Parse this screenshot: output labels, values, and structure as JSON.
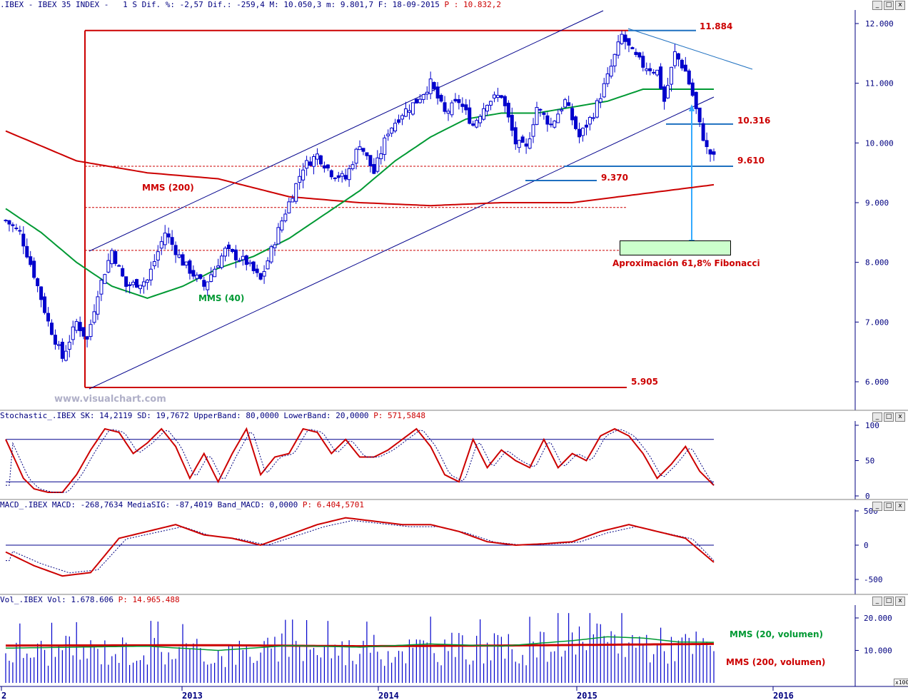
{
  "headers": {
    "price": ".IBEX - IBEX 35 INDEX -   1 S Dif. %: -2,57 Dif.: -259,4 M: 10.050,3 m: 9.801,7 F: 18-09-2015 ",
    "price_p": "P : 10.832,2",
    "stoch": "Stochastic_.IBEX SK: 14,2119 SD: 19,7672 UpperBand: 80,0000 LowerBand: 20,0000 ",
    "stoch_p": "P: 571,5848",
    "macd": "MACD_.IBEX MACD: -268,7634 MediaSIG: -87,4019 Band_MACD: 0,0000 ",
    "macd_p": "P: 6.404,5701",
    "vol": "Vol_.IBEX Vol: 1.678.606 ",
    "vol_p": "P: 14.965.488"
  },
  "window_buttons": [
    "_",
    "□",
    "x"
  ],
  "watermark": "www.visualchart.com",
  "annotations": {
    "high": "11.884",
    "low": "5.905",
    "resistance": "10.316",
    "support1": "9.610",
    "support2": "9.370",
    "mms200": "MMS (200)",
    "mms40": "MMS (40)",
    "fibonacci": "Aproximación 61,8% Fibonacci",
    "vol_mms20": "MMS (20, volumen)",
    "vol_mms200": "MMS (200, volumen)"
  },
  "colors": {
    "bg": "#ffffff",
    "candle": "#0000cc",
    "mms200": "#cc0000",
    "mms40": "#009933",
    "channel": "#00008b",
    "level": "#1e70c0",
    "text_red": "#cc0000",
    "fib_box": "#ccffcc",
    "fib_arrow": "#33aaff"
  },
  "chart_data": [
    {
      "type": "candlestick",
      "name": "IBEX 35 weekly",
      "y_axis": {
        "ticks": [
          6000,
          7000,
          8000,
          9000,
          10000,
          11000,
          12000
        ],
        "tick_labels": [
          "6.000",
          "7.000",
          "8.000",
          "9.000",
          "10.000",
          "11.000",
          "12.000"
        ],
        "ylim": [
          5650,
          12300
        ]
      },
      "x_axis": {
        "tick_labels": [
          "2",
          "2013",
          "2014",
          "2015",
          "2016"
        ]
      },
      "anchors_close": [
        [
          0,
          8700
        ],
        [
          4,
          8500
        ],
        [
          8,
          7800
        ],
        [
          12,
          7000
        ],
        [
          16,
          6400
        ],
        [
          20,
          7000
        ],
        [
          23,
          6700
        ],
        [
          26,
          7500
        ],
        [
          30,
          8200
        ],
        [
          34,
          7600
        ],
        [
          40,
          7700
        ],
        [
          45,
          8500
        ],
        [
          50,
          8000
        ],
        [
          56,
          7600
        ],
        [
          62,
          8200
        ],
        [
          68,
          8000
        ],
        [
          72,
          7700
        ],
        [
          78,
          8700
        ],
        [
          84,
          9600
        ],
        [
          88,
          9800
        ],
        [
          92,
          9500
        ],
        [
          96,
          9400
        ],
        [
          100,
          10000
        ],
        [
          104,
          9500
        ],
        [
          108,
          10200
        ],
        [
          112,
          10500
        ],
        [
          116,
          10700
        ],
        [
          120,
          11000
        ],
        [
          124,
          10500
        ],
        [
          128,
          10700
        ],
        [
          132,
          10300
        ],
        [
          136,
          10700
        ],
        [
          140,
          10800
        ],
        [
          144,
          10000
        ],
        [
          147,
          9900
        ],
        [
          150,
          10600
        ],
        [
          154,
          10300
        ],
        [
          158,
          10700
        ],
        [
          162,
          10100
        ],
        [
          166,
          10500
        ],
        [
          170,
          11100
        ],
        [
          174,
          11800
        ],
        [
          177,
          11500
        ],
        [
          180,
          11300
        ],
        [
          184,
          11200
        ],
        [
          186,
          10700
        ],
        [
          189,
          11500
        ],
        [
          192,
          11200
        ],
        [
          194,
          10800
        ],
        [
          196,
          10300
        ],
        [
          198,
          9900
        ],
        [
          200,
          9750
        ]
      ],
      "mms200_anchors": [
        [
          0,
          10200
        ],
        [
          20,
          9700
        ],
        [
          40,
          9500
        ],
        [
          60,
          9400
        ],
        [
          80,
          9100
        ],
        [
          100,
          9000
        ],
        [
          120,
          8950
        ],
        [
          140,
          9000
        ],
        [
          160,
          9000
        ],
        [
          180,
          9150
        ],
        [
          200,
          9300
        ]
      ],
      "mms40_anchors": [
        [
          0,
          8900
        ],
        [
          10,
          8500
        ],
        [
          20,
          8000
        ],
        [
          30,
          7600
        ],
        [
          40,
          7400
        ],
        [
          50,
          7600
        ],
        [
          60,
          7900
        ],
        [
          70,
          8100
        ],
        [
          80,
          8400
        ],
        [
          90,
          8800
        ],
        [
          100,
          9200
        ],
        [
          110,
          9700
        ],
        [
          120,
          10100
        ],
        [
          130,
          10400
        ],
        [
          140,
          10500
        ],
        [
          150,
          10500
        ],
        [
          160,
          10600
        ],
        [
          170,
          10700
        ],
        [
          180,
          10900
        ],
        [
          190,
          10900
        ],
        [
          200,
          10900
        ]
      ],
      "levels": {
        "high": 11884,
        "low": 5905,
        "resistance": 10316,
        "support1": 9610,
        "support2": 9370,
        "fib_top": 8380,
        "fib_bottom": 8150
      }
    },
    {
      "type": "line",
      "name": "Stochastic",
      "y_axis": {
        "tick_labels": [
          "100",
          "50",
          "0"
        ],
        "ticks": [
          100,
          50,
          0
        ]
      },
      "bands": [
        80,
        20
      ],
      "anchors": [
        [
          0,
          80
        ],
        [
          5,
          25
        ],
        [
          8,
          10
        ],
        [
          12,
          5
        ],
        [
          16,
          5
        ],
        [
          20,
          30
        ],
        [
          24,
          65
        ],
        [
          28,
          95
        ],
        [
          32,
          90
        ],
        [
          36,
          60
        ],
        [
          40,
          75
        ],
        [
          44,
          95
        ],
        [
          48,
          70
        ],
        [
          52,
          25
        ],
        [
          56,
          60
        ],
        [
          60,
          20
        ],
        [
          64,
          60
        ],
        [
          68,
          95
        ],
        [
          72,
          30
        ],
        [
          76,
          55
        ],
        [
          80,
          60
        ],
        [
          84,
          95
        ],
        [
          88,
          90
        ],
        [
          92,
          60
        ],
        [
          96,
          80
        ],
        [
          100,
          55
        ],
        [
          104,
          55
        ],
        [
          108,
          65
        ],
        [
          112,
          80
        ],
        [
          116,
          95
        ],
        [
          120,
          70
        ],
        [
          124,
          30
        ],
        [
          128,
          20
        ],
        [
          132,
          80
        ],
        [
          136,
          40
        ],
        [
          140,
          65
        ],
        [
          144,
          50
        ],
        [
          148,
          40
        ],
        [
          152,
          80
        ],
        [
          156,
          40
        ],
        [
          160,
          60
        ],
        [
          164,
          50
        ],
        [
          168,
          85
        ],
        [
          172,
          95
        ],
        [
          176,
          85
        ],
        [
          180,
          60
        ],
        [
          184,
          25
        ],
        [
          188,
          45
        ],
        [
          192,
          70
        ],
        [
          196,
          35
        ],
        [
          200,
          15
        ]
      ]
    },
    {
      "type": "line",
      "name": "MACD",
      "y_axis": {
        "tick_labels": [
          "500",
          "0",
          "-500"
        ],
        "ticks": [
          500,
          0,
          -500
        ]
      },
      "anchors": [
        [
          0,
          -100
        ],
        [
          8,
          -300
        ],
        [
          16,
          -450
        ],
        [
          24,
          -400
        ],
        [
          32,
          100
        ],
        [
          40,
          200
        ],
        [
          48,
          300
        ],
        [
          56,
          150
        ],
        [
          64,
          100
        ],
        [
          72,
          0
        ],
        [
          80,
          150
        ],
        [
          88,
          300
        ],
        [
          96,
          400
        ],
        [
          104,
          350
        ],
        [
          112,
          300
        ],
        [
          120,
          300
        ],
        [
          128,
          200
        ],
        [
          136,
          50
        ],
        [
          144,
          0
        ],
        [
          152,
          20
        ],
        [
          160,
          50
        ],
        [
          168,
          200
        ],
        [
          176,
          300
        ],
        [
          184,
          200
        ],
        [
          192,
          100
        ],
        [
          200,
          -250
        ]
      ]
    },
    {
      "type": "bar",
      "name": "Volume",
      "y_axis": {
        "tick_labels": [
          "20.000",
          "10.000"
        ],
        "ticks": [
          20000,
          10000
        ],
        "unit_note": "x100"
      },
      "mms20_anchors": [
        [
          0,
          10700
        ],
        [
          40,
          11300
        ],
        [
          60,
          10000
        ],
        [
          80,
          11500
        ],
        [
          100,
          11000
        ],
        [
          120,
          12000
        ],
        [
          140,
          11300
        ],
        [
          160,
          13000
        ],
        [
          170,
          14200
        ],
        [
          180,
          13800
        ],
        [
          190,
          12600
        ],
        [
          200,
          12500
        ]
      ],
      "mms200_anchors": [
        [
          0,
          11500
        ],
        [
          60,
          11600
        ],
        [
          100,
          11300
        ],
        [
          140,
          11500
        ],
        [
          200,
          12000
        ]
      ]
    }
  ]
}
